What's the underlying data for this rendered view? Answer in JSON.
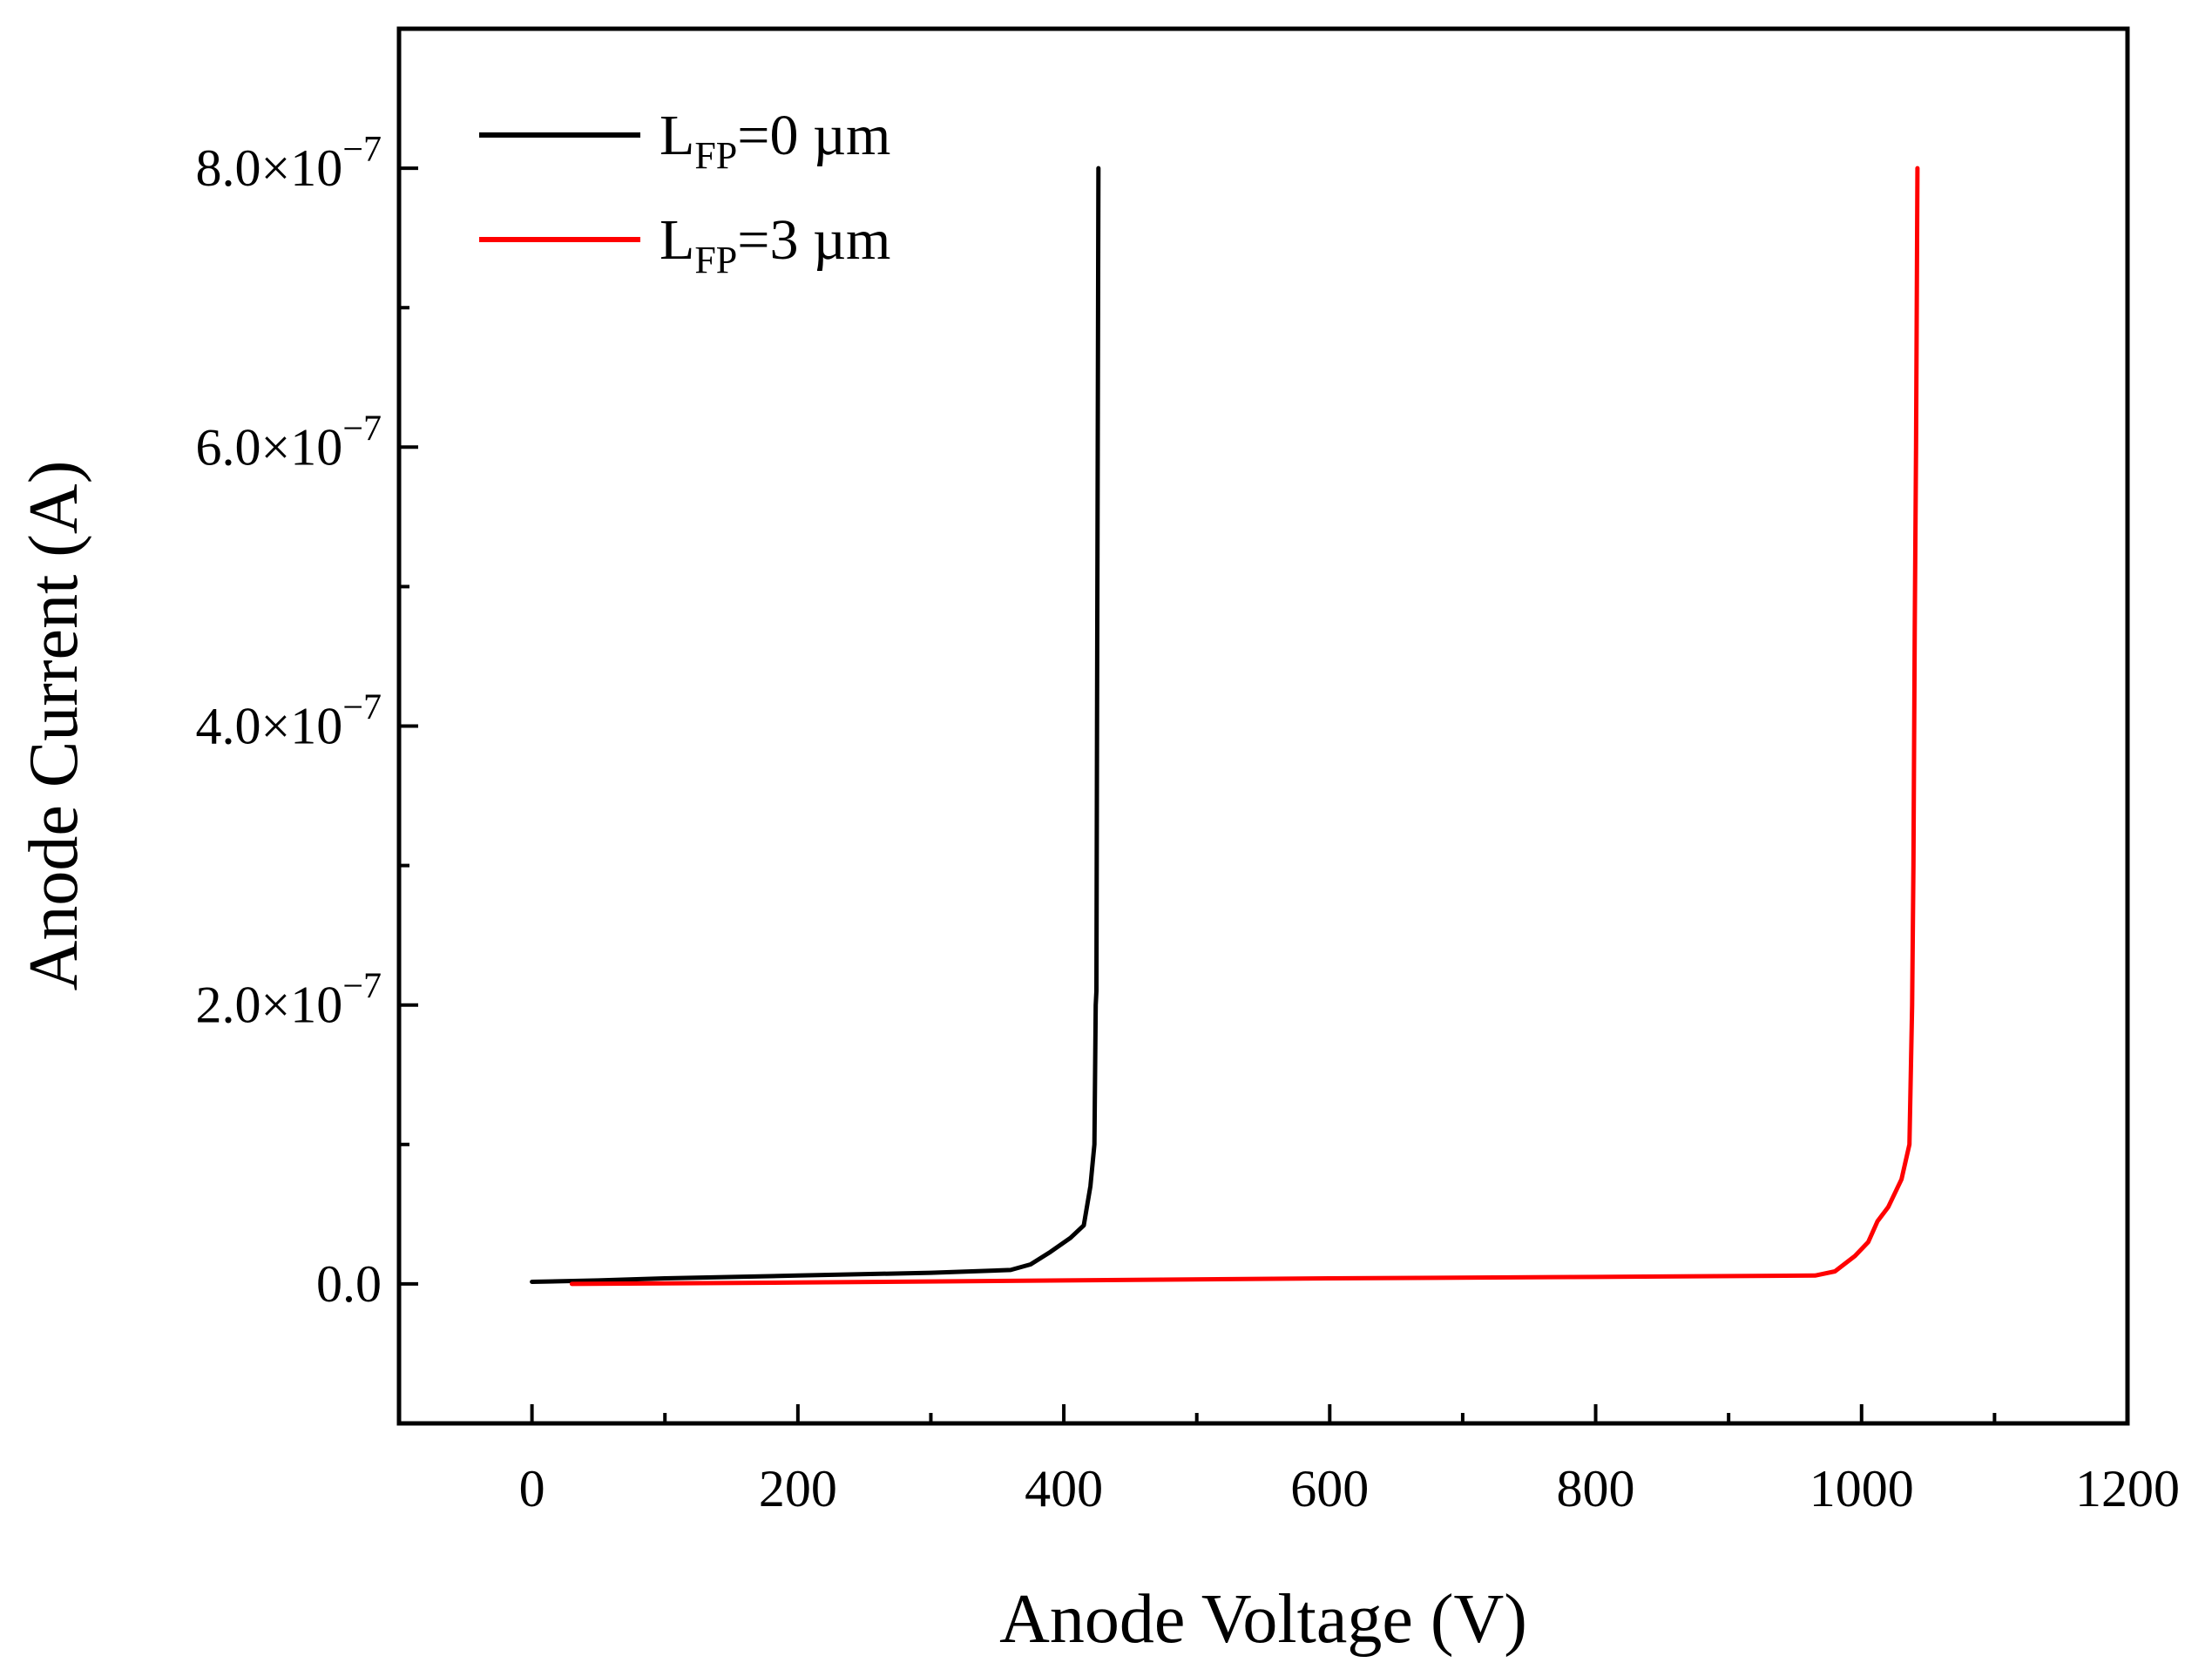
{
  "chart_data": {
    "type": "line",
    "title": "",
    "xlabel": "Anode Voltage (V)",
    "ylabel": "Anode Current (A)",
    "xlim": [
      -100,
      1200
    ],
    "ylim": [
      -1e-07,
      9e-07
    ],
    "grid": false,
    "legend_position": "top-left",
    "x_ticks": [
      {
        "value": 0,
        "label": "0"
      },
      {
        "value": 200,
        "label": "200"
      },
      {
        "value": 400,
        "label": "400"
      },
      {
        "value": 600,
        "label": "600"
      },
      {
        "value": 800,
        "label": "800"
      },
      {
        "value": 1000,
        "label": "1000"
      },
      {
        "value": 1200,
        "label": "1200"
      }
    ],
    "y_ticks": [
      {
        "value": 0,
        "mantissa": "0.0",
        "exponent": ""
      },
      {
        "value": 2e-07,
        "mantissa": "2.0×10",
        "exponent": "−7"
      },
      {
        "value": 4e-07,
        "mantissa": "4.0×10",
        "exponent": "−7"
      },
      {
        "value": 6e-07,
        "mantissa": "6.0×10",
        "exponent": "−7"
      },
      {
        "value": 8e-07,
        "mantissa": "8.0×10",
        "exponent": "−7"
      }
    ],
    "series": [
      {
        "name": "L_FP=0 µm",
        "legend_main": "L",
        "legend_sub": "FP",
        "legend_rest": "=0 µm",
        "color": "#000000",
        "x": [
          0,
          50,
          100,
          200,
          300,
          360,
          375,
          390,
          405,
          415,
          420,
          423,
          424,
          424.5,
          425,
          425.5,
          426
        ],
        "y": [
          1.5e-09,
          2.5e-09,
          4e-09,
          6e-09,
          8e-09,
          1e-08,
          1.4e-08,
          2.3e-08,
          3.3e-08,
          4.2e-08,
          7e-08,
          1e-07,
          2e-07,
          2.1e-07,
          4e-07,
          6e-07,
          8e-07
        ]
      },
      {
        "name": "L_FP=3 µm",
        "legend_main": "L",
        "legend_sub": "FP",
        "legend_rest": "=3 µm",
        "color": "#ff0000",
        "x": [
          30,
          200,
          400,
          600,
          800,
          965,
          980,
          995,
          1005,
          1012,
          1020,
          1030,
          1036,
          1038,
          1039,
          1040,
          1041,
          1042
        ],
        "y": [
          0,
          1e-09,
          2.5e-09,
          4e-09,
          5e-09,
          6e-09,
          9e-09,
          2e-08,
          3e-08,
          4.5e-08,
          5.5e-08,
          7.5e-08,
          1e-07,
          2e-07,
          3e-07,
          4.7e-07,
          6e-07,
          8e-07
        ]
      }
    ]
  }
}
